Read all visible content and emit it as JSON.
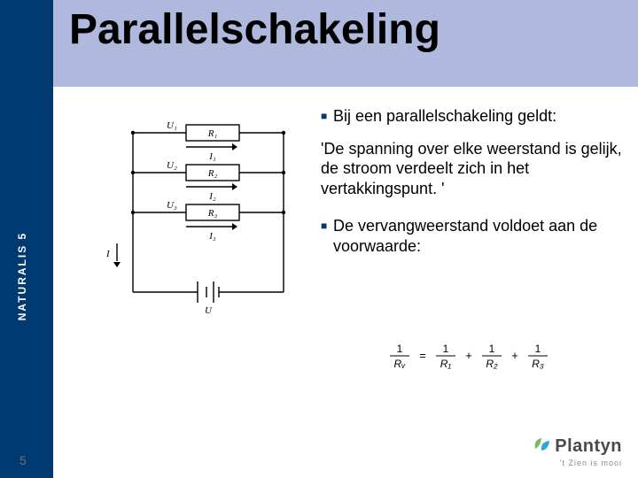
{
  "title": "Parallelschakeling",
  "sidebar_label": "NATURALIS 5",
  "page_number": "5",
  "colors": {
    "title_band": "#aeb9dd",
    "left_col": "#003a70",
    "bullet": "#003a70",
    "title_text": "#000000",
    "body_text": "#000000",
    "sidebar_text": "#ffffff",
    "page_num_text": "#717171",
    "logo_text": "#4a4a4a",
    "logo_tag": "#8a8a8a",
    "leaf1": "#7bb661",
    "leaf2": "#2aa8d8",
    "background": "#ffffff"
  },
  "typography": {
    "title_fontsize": 48,
    "body_fontsize": 18,
    "sidebar_fontsize": 12,
    "logo_fontsize": 20
  },
  "bullets": [
    "Bij een parallelschakeling geldt:",
    "De vervangweerstand voldoet aan de voorwaarde:"
  ],
  "quote": "'De spanning over elke weerstand is gelijk, de stroom verdeelt zich in het vertakkingspunt. '",
  "logo": {
    "name": "Plantyn",
    "tagline": "'t Zien is mooi"
  },
  "circuit": {
    "type": "circuit-diagram",
    "label_fontsize": 11,
    "stroke": "#000000",
    "stroke_width": 1.4,
    "source_label": "U",
    "main_current_label": "I",
    "branches": [
      {
        "voltage": "U₁",
        "resistor": "R₁",
        "current": "I₁"
      },
      {
        "voltage": "U₂",
        "resistor": "R₂",
        "current": "I₂"
      },
      {
        "voltage": "U₃",
        "resistor": "R₃",
        "current": "I₃"
      }
    ]
  },
  "formula": {
    "lhs": {
      "num": "1",
      "den": "Rᵥ"
    },
    "rhs": [
      {
        "num": "1",
        "den": "R₁"
      },
      {
        "num": "1",
        "den": "R₂"
      },
      {
        "num": "1",
        "den": "R₃"
      }
    ],
    "fontsize": 12,
    "bar_color": "#000000"
  }
}
